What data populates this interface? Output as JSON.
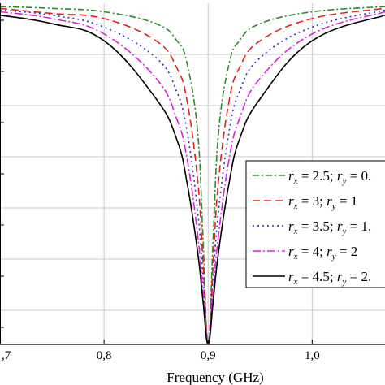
{
  "chart_data": {
    "type": "line",
    "xlabel": "Frequency (GHz)",
    "ylabel": "",
    "title": "",
    "xlim": [
      0.7,
      1.07
    ],
    "ylim": [
      0,
      1
    ],
    "grid": true,
    "legend_position": "right",
    "x_ticks": [
      {
        "value": 0.7,
        "label": ",7"
      },
      {
        "value": 0.8,
        "label": "0,8"
      },
      {
        "value": 0.9,
        "label": "0,9"
      },
      {
        "value": 1.0,
        "label": "1,0"
      }
    ],
    "y_gridlines": [
      0.1,
      0.25,
      0.4,
      0.55,
      0.7,
      0.85
    ],
    "center_frequency": 0.9,
    "series": [
      {
        "name": "r_x = 2.5; r_y = 0.",
        "legend": {
          "rx": "2.5",
          "ry": "0."
        },
        "color": "#2e8b2e",
        "dash": "8,3,2,3",
        "x": [
          0.7,
          0.75,
          0.8,
          0.85,
          0.87,
          0.88,
          0.89,
          0.895,
          0.9,
          0.905,
          0.91,
          0.92,
          0.93,
          0.95,
          1.0,
          1.07
        ],
        "y": [
          0.99,
          0.985,
          0.975,
          0.94,
          0.89,
          0.82,
          0.62,
          0.32,
          0.0,
          0.32,
          0.62,
          0.82,
          0.89,
          0.94,
          0.975,
          0.99
        ]
      },
      {
        "name": "r_x = 3; r_y = 1",
        "legend": {
          "rx": "3",
          "ry": "1"
        },
        "color": "#e8201c",
        "dash": "9,5",
        "x": [
          0.7,
          0.75,
          0.8,
          0.85,
          0.87,
          0.88,
          0.89,
          0.895,
          0.9,
          0.905,
          0.91,
          0.92,
          0.93,
          0.95,
          1.0,
          1.07
        ],
        "y": [
          0.985,
          0.97,
          0.955,
          0.89,
          0.81,
          0.71,
          0.48,
          0.25,
          0.0,
          0.25,
          0.48,
          0.71,
          0.81,
          0.89,
          0.955,
          0.985
        ]
      },
      {
        "name": "r_x = 3.5; r_y = 1.",
        "legend": {
          "rx": "3.5",
          "ry": "1."
        },
        "color": "#2a2ad0",
        "dash": "2,4",
        "x": [
          0.7,
          0.75,
          0.8,
          0.85,
          0.87,
          0.88,
          0.89,
          0.895,
          0.9,
          0.905,
          0.91,
          0.92,
          0.93,
          0.95,
          1.0,
          1.07
        ],
        "y": [
          0.98,
          0.965,
          0.93,
          0.84,
          0.74,
          0.62,
          0.39,
          0.2,
          0.0,
          0.2,
          0.39,
          0.62,
          0.74,
          0.84,
          0.93,
          0.98
        ]
      },
      {
        "name": "r_x = 4; r_y = 2",
        "legend": {
          "rx": "4",
          "ry": "2"
        },
        "color": "#dd22dd",
        "dash": "10,3,2,3",
        "x": [
          0.7,
          0.75,
          0.8,
          0.85,
          0.87,
          0.88,
          0.89,
          0.895,
          0.9,
          0.905,
          0.91,
          0.92,
          0.93,
          0.95,
          1.0,
          1.07
        ],
        "y": [
          0.975,
          0.955,
          0.91,
          0.78,
          0.66,
          0.54,
          0.32,
          0.16,
          0.0,
          0.16,
          0.32,
          0.54,
          0.66,
          0.78,
          0.91,
          0.975
        ]
      },
      {
        "name": "r_x = 4.5; r_y = 2.",
        "legend": {
          "rx": "4.5",
          "ry": "2."
        },
        "color": "#000000",
        "dash": "",
        "x": [
          0.7,
          0.75,
          0.8,
          0.85,
          0.87,
          0.88,
          0.89,
          0.895,
          0.9,
          0.905,
          0.91,
          0.92,
          0.93,
          0.95,
          1.0,
          1.07
        ],
        "y": [
          0.965,
          0.94,
          0.89,
          0.72,
          0.6,
          0.47,
          0.27,
          0.13,
          0.0,
          0.13,
          0.27,
          0.47,
          0.6,
          0.72,
          0.89,
          0.965
        ]
      }
    ]
  }
}
